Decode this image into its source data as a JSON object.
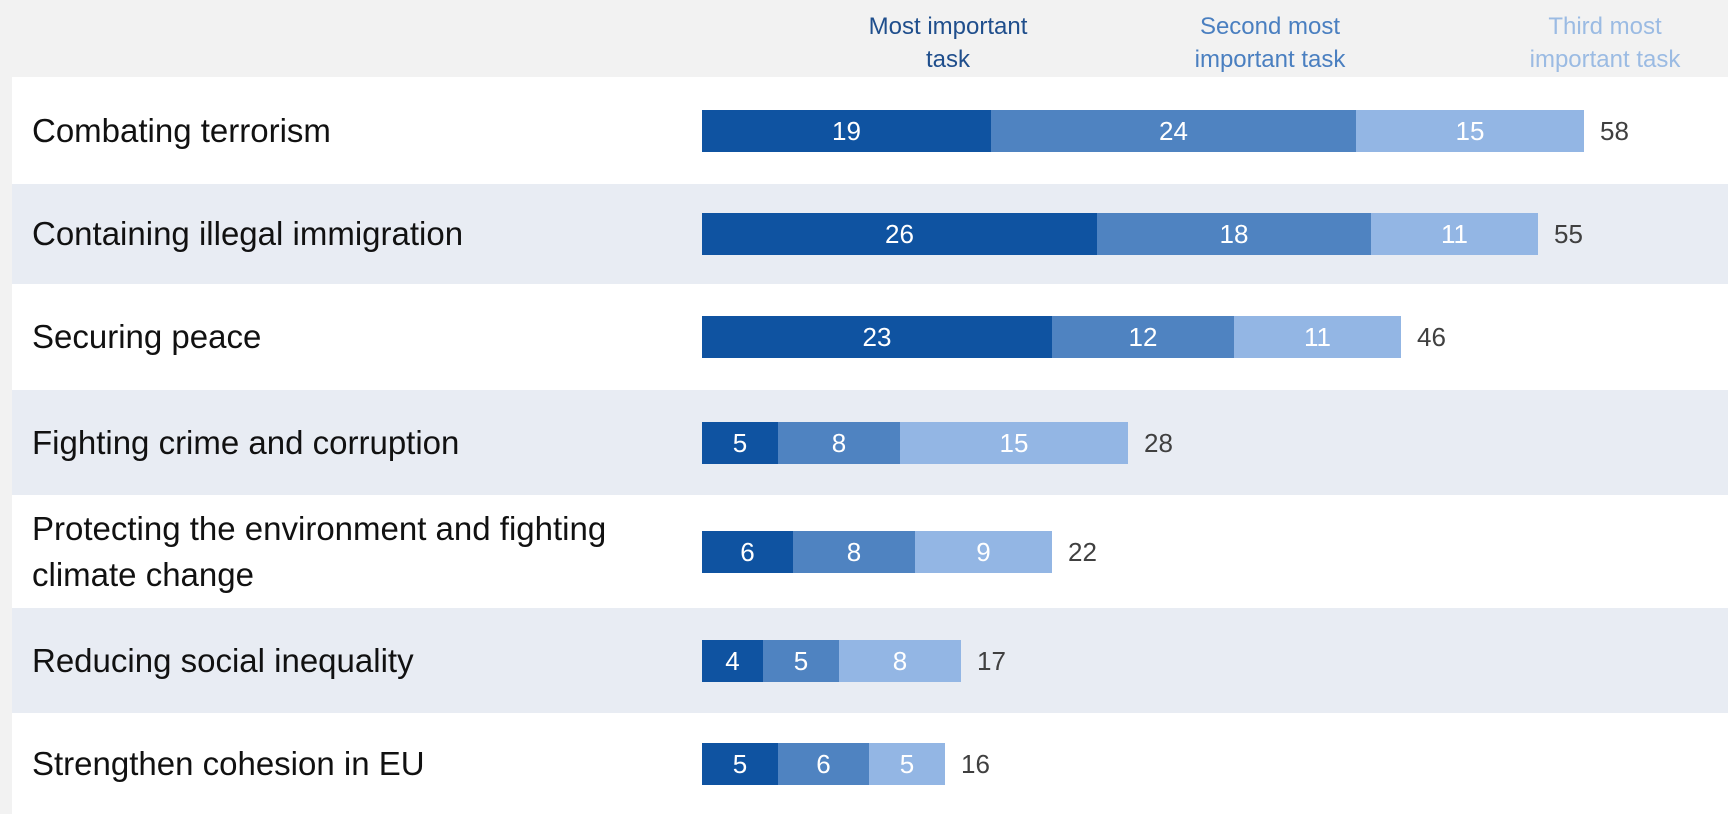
{
  "chart_data": {
    "type": "bar",
    "orientation": "horizontal",
    "stacked": true,
    "categories": [
      "Combating terrorism",
      "Containing illegal immigration",
      "Securing peace",
      "Fighting crime and corruption",
      "Protecting the environment and fighting climate change",
      "Reducing social inequality",
      "Strengthen cohesion in EU"
    ],
    "category_display": [
      "Combating terrorism",
      "Containing illegal immigration",
      "Securing peace",
      "Fighting crime and corruption",
      "Protecting the environment and fighting\nclimate change",
      "Reducing social inequality",
      "Strengthen cohesion in EU"
    ],
    "series": [
      {
        "name": "Most important\ntask",
        "color": "#0f53a1",
        "values": [
          19,
          26,
          23,
          5,
          6,
          4,
          5
        ]
      },
      {
        "name": "Second most\nimportant task",
        "color": "#4f83c1",
        "values": [
          24,
          18,
          12,
          8,
          8,
          5,
          6
        ]
      },
      {
        "name": "Third most\nimportant task",
        "color": "#93b6e4",
        "values": [
          15,
          11,
          11,
          15,
          9,
          8,
          5
        ]
      }
    ],
    "totals": [
      58,
      55,
      46,
      28,
      22,
      17,
      16
    ],
    "legend_colors": [
      "#1f4e8c",
      "#4a7fc0",
      "#9bbbe3"
    ],
    "row_backgrounds": [
      "#ffffff",
      "#e8ecf3"
    ],
    "grid": false,
    "legend_position": "top"
  }
}
